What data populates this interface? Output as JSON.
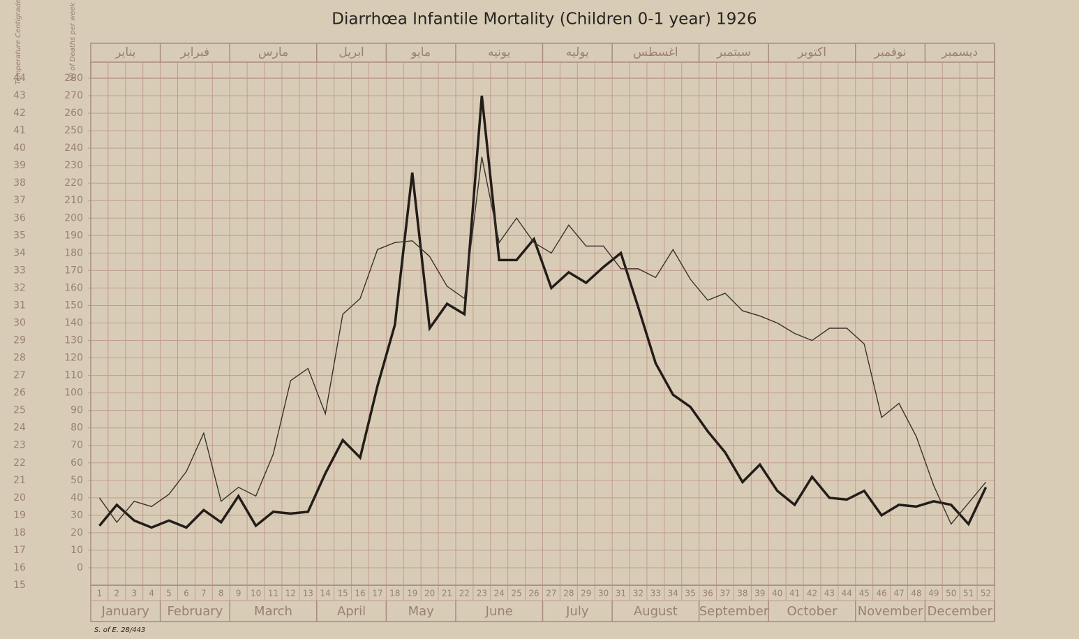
{
  "chart_data": {
    "type": "line",
    "title": "Diarrhœa Infantile Mortality (Children 0-1 year) 1926",
    "y_axis_label": "Nº of Deaths per week",
    "y2_axis_label": "Temperature Centigrade",
    "footer": "S. of E. 28/443",
    "x": [
      1,
      2,
      3,
      4,
      5,
      6,
      7,
      8,
      9,
      10,
      11,
      12,
      13,
      14,
      15,
      16,
      17,
      18,
      19,
      20,
      21,
      22,
      23,
      24,
      25,
      26,
      27,
      28,
      29,
      30,
      31,
      32,
      33,
      34,
      35,
      36,
      37,
      38,
      39,
      40,
      41,
      42,
      43,
      44,
      45,
      46,
      47,
      48,
      49,
      50,
      51,
      52
    ],
    "xlim": [
      0.5,
      52.5
    ],
    "months": [
      "January",
      "February",
      "March",
      "April",
      "May",
      "June",
      "July",
      "August",
      "September",
      "October",
      "November",
      "December"
    ],
    "arabic_months": [
      "يناير",
      "فبراير",
      "مارس",
      "ابريل",
      "مايو",
      "يونيه",
      "يوليه",
      "اغسطس",
      "سبتمبر",
      "اكتوبر",
      "نوفمبر",
      "ديسمبر"
    ],
    "month_weeks": [
      4,
      4,
      5,
      4,
      4,
      5,
      4,
      5,
      4,
      5,
      4,
      4
    ],
    "ylim": [
      -10,
      280
    ],
    "yticks": [
      0,
      10,
      20,
      30,
      40,
      50,
      60,
      70,
      80,
      90,
      100,
      110,
      120,
      130,
      140,
      150,
      160,
      170,
      180,
      190,
      200,
      210,
      220,
      230,
      240,
      250,
      260,
      270,
      280
    ],
    "y2lim": [
      15,
      44
    ],
    "y2ticks": [
      15,
      16,
      17,
      18,
      19,
      20,
      21,
      22,
      23,
      24,
      25,
      26,
      27,
      28,
      29,
      30,
      31,
      32,
      33,
      34,
      35,
      36,
      37,
      38,
      39,
      40,
      41,
      42,
      43,
      44
    ],
    "grid": true,
    "series": [
      {
        "color": "#231d19",
        "width": 3.5,
        "values": [
          24,
          36,
          27,
          23,
          27,
          23,
          33,
          26,
          41,
          24,
          32,
          31,
          32,
          54,
          73,
          63,
          104,
          139,
          226,
          137,
          151,
          145,
          270,
          176,
          176,
          188,
          160,
          169,
          163,
          172,
          180,
          149,
          117,
          99,
          92,
          78,
          66,
          49,
          59,
          44,
          36,
          52,
          40,
          39,
          44,
          30,
          36,
          35,
          38,
          36,
          25,
          46
        ]
      },
      {
        "color": "#3a322c",
        "width": 1.4,
        "axis": "y2",
        "values": [
          20.0,
          18.6,
          19.8,
          19.5,
          20.2,
          21.5,
          23.7,
          19.8,
          20.6,
          20.1,
          22.5,
          26.7,
          27.4,
          24.8,
          30.5,
          31.4,
          34.2,
          34.6,
          34.7,
          33.8,
          32.1,
          31.4,
          39.5,
          34.6,
          36.0,
          34.6,
          34.0,
          35.6,
          34.4,
          34.4,
          33.1,
          33.1,
          32.6,
          34.2,
          32.5,
          31.3,
          31.7,
          30.7,
          30.4,
          30.0,
          29.4,
          29.0,
          29.7,
          29.7,
          28.8,
          24.6,
          25.4,
          23.5,
          20.7,
          18.5,
          19.7,
          20.9
        ]
      }
    ]
  }
}
